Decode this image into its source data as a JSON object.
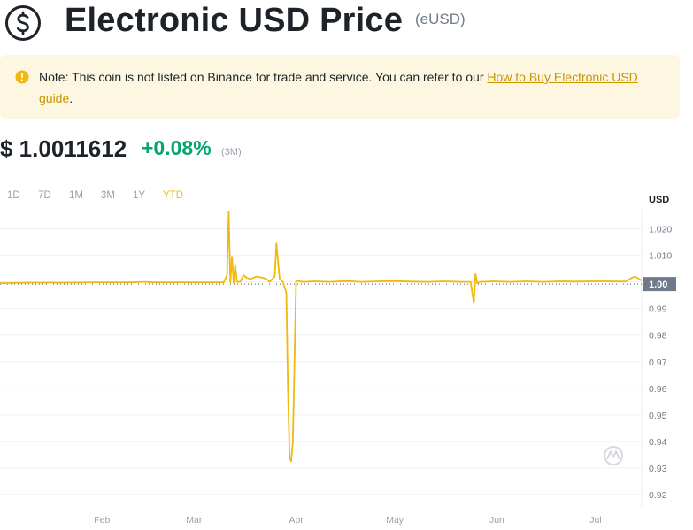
{
  "header": {
    "title": "Electronic USD Price",
    "symbol": "(eUSD)"
  },
  "notice": {
    "text": "Note: This coin is not listed on Binance for trade and service. You can refer to our ",
    "link_text": "How to Buy Electronic USD guide",
    "suffix": "."
  },
  "price": {
    "value": "$ 1.0011612",
    "change": "+0.08%",
    "period": "(3M)"
  },
  "range_tabs": [
    {
      "label": "1D",
      "active": false
    },
    {
      "label": "7D",
      "active": false
    },
    {
      "label": "1M",
      "active": false
    },
    {
      "label": "3M",
      "active": false
    },
    {
      "label": "1Y",
      "active": false
    },
    {
      "label": "YTD",
      "active": true
    }
  ],
  "colors": {
    "line": "#f0b90b",
    "grid": "#eef0f2",
    "positive": "#03a66d",
    "notice_bg": "#fdf7e1",
    "link": "#c99400",
    "current_price_tag": "#707a8a"
  },
  "chart_data": {
    "type": "line",
    "ylabel": "USD",
    "current_price_label": "1.00",
    "current_price": 0.9995,
    "ylim": [
      0.915,
      1.0275
    ],
    "y_ticks": [
      0.92,
      0.93,
      0.94,
      0.95,
      0.96,
      0.97,
      0.98,
      0.99,
      1.0,
      1.01,
      1.02
    ],
    "y_tick_labels": [
      "0.92",
      "0.93",
      "0.94",
      "0.95",
      "0.96",
      "0.97",
      "0.98",
      "0.99",
      "1.000",
      "1.010",
      "1.020"
    ],
    "x_tick_labels": [
      "Feb",
      "Mar",
      "Apr",
      "May",
      "Jun",
      "Jul"
    ],
    "x_tick_days": [
      31,
      59,
      90,
      120,
      151,
      181
    ],
    "xlim": [
      0,
      195
    ],
    "series": [
      {
        "x": [
          0,
          10,
          20,
          30,
          40,
          44,
          46,
          50,
          60,
          68,
          69,
          69.5,
          70,
          70.5,
          71,
          71.5,
          72,
          73,
          74,
          75,
          76,
          78,
          80,
          81,
          82,
          83,
          83.5,
          84,
          85,
          86,
          87,
          87.5,
          88,
          88.5,
          89,
          90,
          92,
          96,
          100,
          105,
          110,
          115,
          120,
          125,
          130,
          135,
          140,
          143,
          144,
          144.5,
          145,
          146,
          150,
          155,
          160,
          165,
          170,
          175,
          180,
          185,
          190,
          192,
          193,
          195
        ],
        "y": [
          0.9995,
          0.9997,
          0.9997,
          0.9998,
          0.9998,
          1.0,
          0.9998,
          0.9998,
          0.9998,
          0.9998,
          1.0025,
          1.0265,
          0.9998,
          1.0095,
          0.9995,
          1.0065,
          1.0,
          1.0,
          1.0025,
          1.0015,
          1.001,
          1.002,
          1.0015,
          1.001,
          1.0,
          1.0015,
          1.002,
          1.0145,
          1.001,
          1.0,
          0.996,
          0.96,
          0.934,
          0.9325,
          0.94,
          1.0005,
          1.0,
          1.0002,
          1.0,
          1.0003,
          1.0,
          1.0002,
          1.0003,
          1.0001,
          1.0,
          1.0002,
          1.0,
          1.0,
          0.992,
          1.003,
          0.9995,
          1.0,
          1.0002,
          1.0,
          1.0002,
          1.0,
          1.0002,
          1.0001,
          1.0002,
          1.0002,
          1.0001,
          1.0015,
          1.002,
          1.0005
        ]
      }
    ]
  }
}
